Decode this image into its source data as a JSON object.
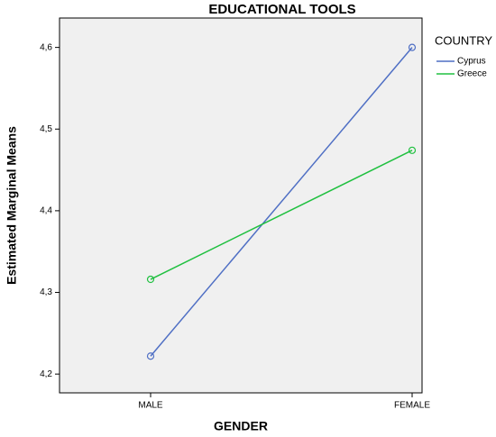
{
  "chart_data": {
    "type": "line",
    "title": "EDUCATIONAL TOOLS",
    "x_label": "GENDER",
    "y_label": "Estimated Marginal Means",
    "legend_title": "COUNTRY",
    "categories": [
      "MALE",
      "FEMALE"
    ],
    "series": [
      {
        "name": "Cyprus",
        "color": "#4f6fc4",
        "values": [
          4.222,
          4.6
        ]
      },
      {
        "name": "Greece",
        "color": "#20c040",
        "values": [
          4.316,
          4.474
        ]
      }
    ],
    "ylim": [
      4.177,
      4.636
    ],
    "yticks": [
      {
        "value": 4.2,
        "label": "4,2"
      },
      {
        "value": 4.3,
        "label": "4,3"
      },
      {
        "value": 4.4,
        "label": "4,4"
      },
      {
        "value": 4.5,
        "label": "4,5"
      },
      {
        "value": 4.6,
        "label": "4,6"
      }
    ],
    "grid": false,
    "legend_position": "right"
  }
}
